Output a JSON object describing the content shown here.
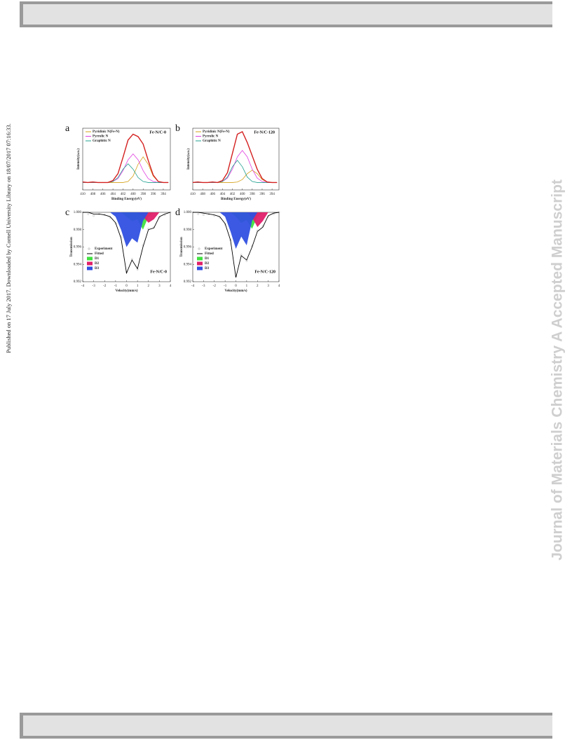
{
  "side_note": "Published on 17 July 2017. Downloaded by Cornell University Library on 18/07/2017 07:16:33.",
  "watermark": "Journal of Materials Chemistry A Accepted Manuscript",
  "chart_data": [
    {
      "type": "line",
      "panel_label": "a",
      "sample": "Fe-N/C-0",
      "x_label": "Binding Energy(eV)",
      "y_label": "Intensity(a.u.)",
      "x": [
        410,
        409,
        408,
        407,
        406,
        405,
        404,
        403,
        402,
        401,
        400,
        399,
        398,
        397,
        396,
        395,
        394,
        393
      ],
      "xlim": [
        410,
        392.6
      ],
      "xticks": [
        410,
        408,
        406,
        404,
        402,
        400,
        398,
        396,
        394
      ],
      "ylim": [
        0,
        125
      ],
      "series": [
        {
          "name": "Pyridinic N(Fe-N)",
          "color": "#d4a017",
          "values": [
            15,
            15,
            15,
            15,
            15,
            15,
            15,
            15,
            15,
            17,
            28,
            52,
            67,
            52,
            28,
            17,
            15,
            15
          ]
        },
        {
          "name": "Pyrrolic N",
          "color": "#e040e0",
          "values": [
            15,
            15,
            15,
            15,
            15,
            15,
            17,
            23,
            39,
            61,
            73,
            61,
            39,
            23,
            17,
            15,
            15,
            15
          ]
        },
        {
          "name": "Graphitic N",
          "color": "#20a090",
          "values": [
            15,
            15,
            15,
            15,
            15,
            15,
            17,
            25,
            42,
            53,
            42,
            25,
            17,
            15,
            15,
            15,
            15,
            15
          ]
        }
      ],
      "fit": {
        "color": "#d42020",
        "values": [
          16,
          15,
          16,
          15,
          15,
          15,
          19,
          33,
          66,
          101,
          113,
          108,
          93,
          60,
          30,
          17,
          15,
          15
        ]
      }
    },
    {
      "type": "line",
      "panel_label": "b",
      "sample": "Fe-N/C-120",
      "x_label": "Binding Energy(eV)",
      "y_label": "Intensity(a.u.)",
      "x": [
        410,
        409,
        408,
        407,
        406,
        405,
        404,
        403,
        402,
        401,
        400,
        399,
        398,
        397,
        396,
        395,
        394,
        393
      ],
      "xlim": [
        410,
        392.6
      ],
      "xticks": [
        410,
        408,
        406,
        404,
        402,
        400,
        398,
        396,
        394
      ],
      "ylim": [
        0,
        125
      ],
      "series": [
        {
          "name": "Pyridinic N(Fe-N)",
          "color": "#d4a017",
          "values": [
            15,
            15,
            15,
            15,
            15,
            15,
            15,
            15,
            15,
            16,
            21,
            33,
            40,
            33,
            21,
            16,
            15,
            15
          ]
        },
        {
          "name": "Pyrrolic N",
          "color": "#e040e0",
          "values": [
            15,
            15,
            15,
            15,
            15,
            15,
            17,
            24,
            42,
            67,
            80,
            67,
            42,
            24,
            17,
            15,
            15,
            15
          ]
        },
        {
          "name": "Graphitic N",
          "color": "#20a090",
          "values": [
            15,
            15,
            15,
            15,
            15,
            15,
            17,
            26,
            47,
            60,
            47,
            26,
            17,
            15,
            15,
            15,
            15,
            15
          ]
        }
      ],
      "fit": {
        "color": "#d42020",
        "values": [
          15,
          16,
          15,
          15,
          16,
          15,
          19,
          35,
          74,
          113,
          118,
          96,
          69,
          42,
          23,
          16,
          15,
          15
        ]
      }
    },
    {
      "type": "mossbauer",
      "panel_label": "c",
      "sample": "Fe-N/C-0",
      "x_label": "Velocity(mm/s)",
      "y_label": "Transmission",
      "x": [
        -4,
        -3.5,
        -3,
        -2.5,
        -2,
        -1.5,
        -1,
        -0.5,
        0,
        0.5,
        1,
        1.5,
        2,
        2.5,
        3,
        3.5,
        4
      ],
      "xlim": [
        -4,
        4
      ],
      "xticks": [
        -4,
        -3,
        -2,
        -1,
        0,
        1,
        2,
        3,
        4
      ],
      "ylim": [
        0.992,
        1.0
      ],
      "yticks": [
        0.992,
        0.994,
        0.996,
        0.998,
        {
          "value": 1.0,
          "label": "1.000"
        }
      ],
      "series": [
        {
          "name": "Experiment",
          "kind": "points",
          "color": "#b0b0b0",
          "values": [
            1.0,
            0.9998,
            0.9996,
            0.9998,
            0.9997,
            0.9994,
            0.9987,
            0.9972,
            0.9931,
            0.9946,
            0.9934,
            0.9962,
            0.9981,
            0.9983,
            0.9994,
            0.9997,
            1.0
          ]
        },
        {
          "name": "Fitted",
          "kind": "line",
          "color": "#000000",
          "values": [
            1.0,
            1.0,
            0.9998,
            0.9998,
            0.9997,
            0.9995,
            0.9988,
            0.997,
            0.993,
            0.9945,
            0.9935,
            0.996,
            0.998,
            0.9982,
            0.9995,
            0.9998,
            1.0
          ]
        },
        {
          "name": "D1",
          "kind": "area",
          "color": "#40e040",
          "values": [
            1.0,
            1.0,
            1.0,
            1.0,
            1.0,
            1.0,
            1.0,
            1.0,
            0.9995,
            0.999,
            0.9992,
            0.998,
            0.9995,
            1.0,
            1.0,
            1.0,
            1.0
          ]
        },
        {
          "name": "D2",
          "kind": "area",
          "color": "#e0206a",
          "values": [
            1.0,
            1.0,
            1.0,
            1.0,
            1.0,
            1.0,
            1.0,
            1.0,
            1.0,
            1.0,
            1.0,
            0.9995,
            0.9988,
            0.9992,
            1.0,
            1.0,
            1.0
          ]
        },
        {
          "name": "D3",
          "kind": "area",
          "color": "#3050e0",
          "values": [
            1.0,
            1.0,
            1.0,
            1.0,
            1.0,
            1.0,
            0.9995,
            0.998,
            0.996,
            0.997,
            0.9965,
            0.999,
            1.0,
            1.0,
            1.0,
            1.0,
            1.0
          ]
        }
      ]
    },
    {
      "type": "mossbauer",
      "panel_label": "d",
      "sample": "Fe-N/C-120",
      "x_label": "Velocity(mm/s)",
      "y_label": "Transmission",
      "x": [
        -4,
        -3.5,
        -3,
        -2.5,
        -2,
        -1.5,
        -1,
        -0.5,
        0,
        0.5,
        1,
        1.5,
        2,
        2.5,
        3,
        3.5,
        4
      ],
      "xlim": [
        -4,
        4
      ],
      "xticks": [
        -4,
        -3,
        -2,
        -1,
        0,
        1,
        2,
        3,
        4
      ],
      "ylim": [
        0.992,
        1.0
      ],
      "yticks": [
        0.992,
        0.994,
        0.996,
        0.998,
        {
          "value": 1.0,
          "label": "1.000"
        }
      ],
      "series": [
        {
          "name": "Experiment",
          "kind": "points",
          "color": "#b0b0b0",
          "values": [
            1.0,
            0.9998,
            0.9997,
            0.9998,
            0.9996,
            0.9994,
            0.9986,
            0.9968,
            0.9926,
            0.9951,
            0.9944,
            0.9961,
            0.9979,
            0.9984,
            0.9995,
            0.9998,
            1.0
          ]
        },
        {
          "name": "Fitted",
          "kind": "line",
          "color": "#000000",
          "values": [
            1.0,
            1.0,
            0.9999,
            0.9998,
            0.9997,
            0.9995,
            0.9987,
            0.9968,
            0.9925,
            0.995,
            0.9945,
            0.996,
            0.9978,
            0.9983,
            0.9996,
            0.9999,
            1.0
          ]
        },
        {
          "name": "D1",
          "kind": "area",
          "color": "#40e040",
          "values": [
            1.0,
            1.0,
            1.0,
            1.0,
            1.0,
            1.0,
            1.0,
            1.0,
            0.9995,
            0.9988,
            0.9991,
            0.9981,
            0.9995,
            1.0,
            1.0,
            1.0,
            1.0
          ]
        },
        {
          "name": "D2",
          "kind": "area",
          "color": "#e0206a",
          "values": [
            1.0,
            1.0,
            1.0,
            1.0,
            1.0,
            1.0,
            1.0,
            1.0,
            1.0,
            1.0,
            1.0,
            0.9994,
            0.9983,
            0.999,
            1.0,
            1.0,
            1.0
          ]
        },
        {
          "name": "D3",
          "kind": "area",
          "color": "#3050e0",
          "values": [
            1.0,
            1.0,
            1.0,
            1.0,
            1.0,
            1.0,
            0.9995,
            0.9978,
            0.9958,
            0.9972,
            0.9962,
            0.999,
            1.0,
            1.0,
            1.0,
            1.0,
            1.0
          ]
        }
      ]
    }
  ]
}
